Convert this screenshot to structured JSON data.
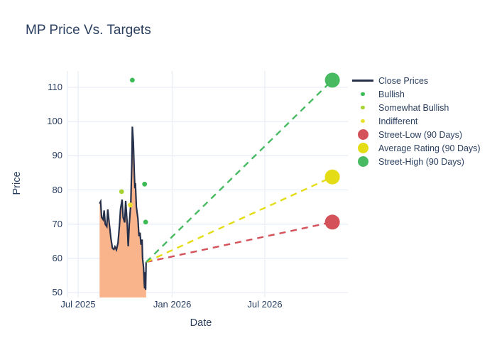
{
  "title": "MP Price Vs. Targets",
  "colors": {
    "text": "#2a3f5f",
    "grid": "#e9eef6",
    "background": "#ffffff",
    "close_line": "#26304a",
    "close_fill": "#f9b48b",
    "bullish": "#3dbb54",
    "somewhat_bullish": "#a6d332",
    "indifferent": "#e7e02c",
    "street_low": "#d4525a",
    "average_rating": "#e4dd15",
    "street_high": "#47ba62"
  },
  "chart_data": {
    "type": "line",
    "title": "MP Price Vs. Targets",
    "xlabel": "Date",
    "ylabel": "Price",
    "ylim": [
      48.5,
      114.8
    ],
    "grid": true,
    "legend_position": "right",
    "y_ticks": [
      50,
      60,
      70,
      80,
      90,
      100,
      110
    ],
    "x_ticks": [
      {
        "label": "Jul 2025",
        "date": "2025-07-01"
      },
      {
        "label": "Jan 2026",
        "date": "2026-01-01"
      },
      {
        "label": "Jul 2026",
        "date": "2026-07-01"
      }
    ],
    "series": [
      {
        "name": "Close Prices",
        "type": "area-line",
        "symbol": "line",
        "color": "#26304a",
        "fill": "#f9b48b",
        "points": [
          [
            "2025-08-12",
            76.0
          ],
          [
            "2025-08-14",
            76.6
          ],
          [
            "2025-08-16",
            72.0
          ],
          [
            "2025-08-19",
            71.3
          ],
          [
            "2025-08-21",
            74.0
          ],
          [
            "2025-08-23",
            70.0
          ],
          [
            "2025-08-26",
            69.3
          ],
          [
            "2025-08-28",
            74.3
          ],
          [
            "2025-08-31",
            70.0
          ],
          [
            "2025-09-03",
            66.0
          ],
          [
            "2025-09-06",
            63.0
          ],
          [
            "2025-09-09",
            62.6
          ],
          [
            "2025-09-11",
            63.4
          ],
          [
            "2025-09-14",
            62.5
          ],
          [
            "2025-09-17",
            64.5
          ],
          [
            "2025-09-20",
            70.0
          ],
          [
            "2025-09-22",
            74.5
          ],
          [
            "2025-09-25",
            77.2
          ],
          [
            "2025-09-27",
            72.0
          ],
          [
            "2025-09-30",
            70.5
          ],
          [
            "2025-10-02",
            76.8
          ],
          [
            "2025-10-05",
            70.0
          ],
          [
            "2025-10-07",
            63.5
          ],
          [
            "2025-10-09",
            70.0
          ],
          [
            "2025-10-12",
            76.0
          ],
          [
            "2025-10-14",
            88.0
          ],
          [
            "2025-10-15",
            98.5
          ],
          [
            "2025-10-17",
            94.0
          ],
          [
            "2025-10-19",
            84.0
          ],
          [
            "2025-10-20",
            80.5
          ],
          [
            "2025-10-21",
            82.0
          ],
          [
            "2025-10-23",
            75.0
          ],
          [
            "2025-10-26",
            71.5
          ],
          [
            "2025-10-28",
            66.5
          ],
          [
            "2025-10-30",
            67.5
          ],
          [
            "2025-11-01",
            64.0
          ],
          [
            "2025-11-03",
            65.5
          ],
          [
            "2025-11-04",
            60.0
          ],
          [
            "2025-11-06",
            57.3
          ],
          [
            "2025-11-07",
            53.5
          ],
          [
            "2025-11-08",
            51.2
          ],
          [
            "2025-11-09",
            56.0
          ],
          [
            "2025-11-10",
            50.8
          ],
          [
            "2025-11-11",
            58.9
          ]
        ]
      },
      {
        "name": "Bullish",
        "type": "scatter",
        "symbol": "dot-small",
        "color": "#3dbb54",
        "points": [
          [
            "2025-10-15",
            112.1
          ],
          [
            "2025-11-08",
            81.7
          ],
          [
            "2025-11-10",
            70.6
          ]
        ]
      },
      {
        "name": "Somewhat Bullish",
        "type": "scatter",
        "symbol": "dot-small",
        "color": "#a6d332",
        "points": [
          [
            "2025-09-24",
            79.5
          ]
        ]
      },
      {
        "name": "Indifferent",
        "type": "scatter",
        "symbol": "dot-small",
        "color": "#e7e02c",
        "points": [
          [
            "2025-10-11",
            75.6
          ]
        ]
      },
      {
        "name": "Street-Low (90 Days)",
        "type": "target",
        "symbol": "dot-big",
        "color": "#d4525a",
        "start": [
          "2025-11-11",
          58.9
        ],
        "end": [
          "2026-11-10",
          70.6
        ]
      },
      {
        "name": "Average Rating (90 Days)",
        "type": "target",
        "symbol": "dot-big",
        "color": "#e4dd15",
        "start": [
          "2025-11-11",
          58.9
        ],
        "end": [
          "2026-11-10",
          83.8
        ]
      },
      {
        "name": "Street-High (90 Days)",
        "type": "target",
        "symbol": "dot-big",
        "color": "#47ba62",
        "start": [
          "2025-11-11",
          58.9
        ],
        "end": [
          "2026-11-10",
          112.1
        ]
      }
    ]
  }
}
